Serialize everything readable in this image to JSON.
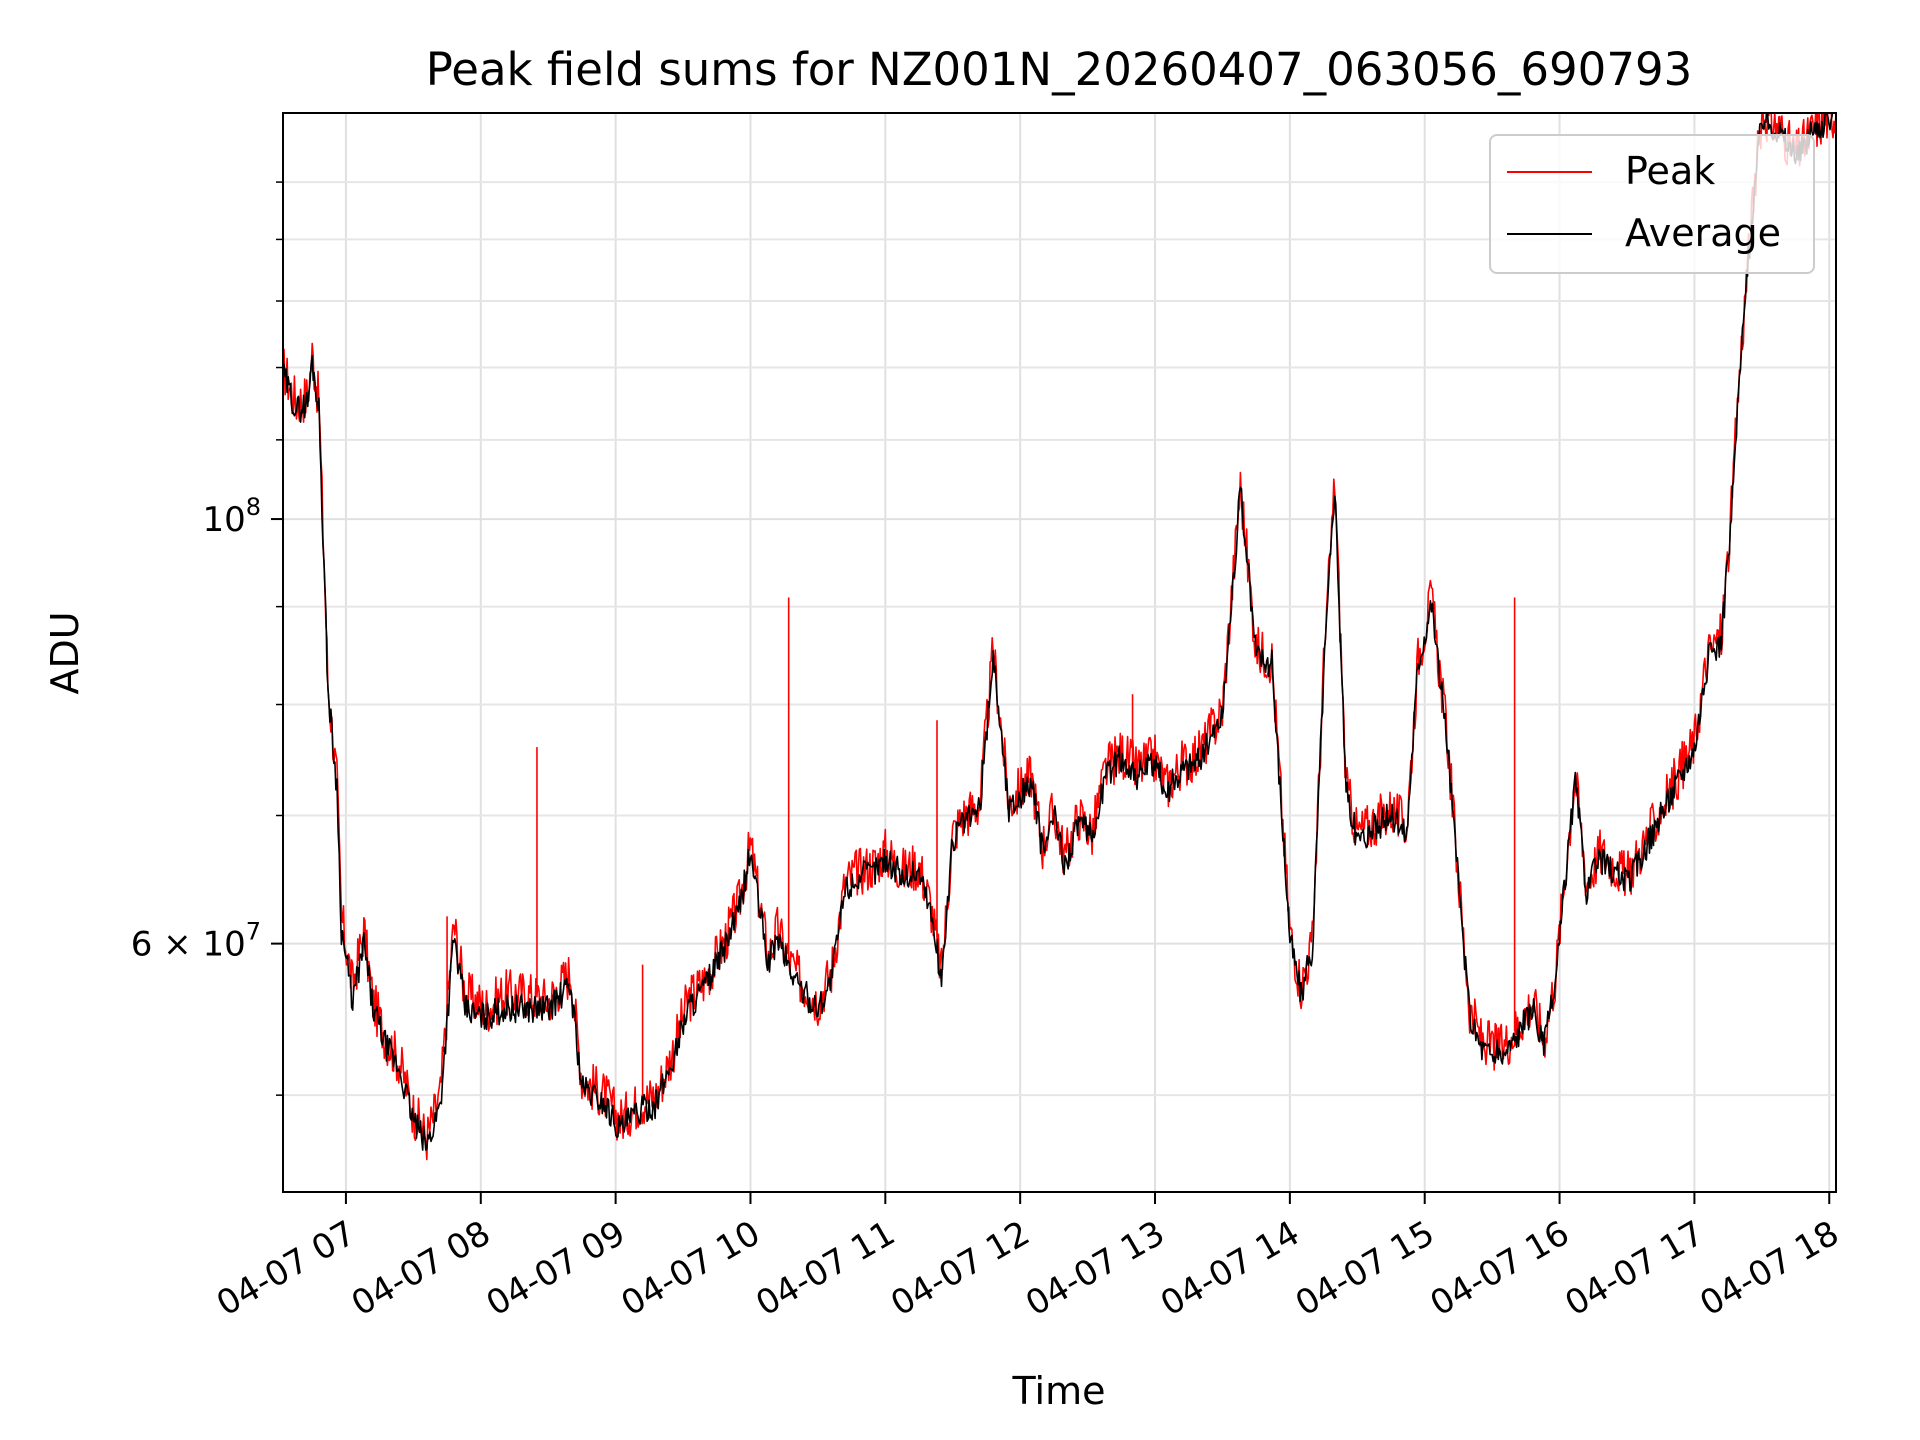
{
  "chart_data": {
    "type": "line",
    "title": "Peak field sums for NZ001N_20260407_063056_690793",
    "xlabel": "Time",
    "ylabel": "ADU",
    "yscale": "log",
    "ylim": [
      44500000,
      163000000
    ],
    "xlim": [
      "2026-04-07 06:32",
      "2026-04-07 18:03"
    ],
    "grid": true,
    "legend_position": "top-right",
    "x_tick_labels": [
      "04-07 07",
      "04-07 08",
      "04-07 09",
      "04-07 10",
      "04-07 11",
      "04-07 12",
      "04-07 13",
      "04-07 14",
      "04-07 15",
      "04-07 16",
      "04-07 17",
      "04-07 18"
    ],
    "y_tick_labels": [
      {
        "value": 100000000,
        "base": "10",
        "exp": "8"
      },
      {
        "value": 60000000,
        "coef": "6",
        "base": "10",
        "exp": "7"
      }
    ],
    "series": [
      {
        "name": "Peak",
        "color": "#ff0000",
        "x": [
          "06:32",
          "06:38",
          "06:43",
          "06:45",
          "06:48",
          "06:52",
          "06:56",
          "06:58",
          "07:03",
          "07:08",
          "07:12",
          "07:18",
          "07:24",
          "07:30",
          "07:36",
          "07:42",
          "07:48",
          "07:53",
          "07:58",
          "08:03",
          "08:10",
          "08:20",
          "08:30",
          "08:40",
          "08:45",
          "08:50",
          "08:55",
          "09:02",
          "09:10",
          "09:18",
          "09:25",
          "09:32",
          "09:40",
          "09:48",
          "09:55",
          "10:00",
          "10:08",
          "10:12",
          "10:18",
          "10:24",
          "10:30",
          "10:36",
          "10:42",
          "10:48",
          "10:55",
          "11:00",
          "11:08",
          "11:15",
          "11:20",
          "11:25",
          "11:30",
          "11:35",
          "11:42",
          "11:48",
          "11:55",
          "12:05",
          "12:10",
          "12:15",
          "12:20",
          "12:26",
          "12:32",
          "12:38",
          "12:45",
          "12:52",
          "13:00",
          "13:05",
          "13:12",
          "13:20",
          "13:30",
          "13:38",
          "13:45",
          "13:52",
          "14:00",
          "14:05",
          "14:10",
          "14:15",
          "14:20",
          "14:25",
          "14:30",
          "14:38",
          "14:45",
          "14:52",
          "14:57",
          "15:03",
          "15:10",
          "15:15",
          "15:20",
          "15:25",
          "15:30",
          "15:35",
          "15:40",
          "15:48",
          "15:53",
          "15:58",
          "16:02",
          "16:07",
          "16:12",
          "16:18",
          "16:30",
          "16:40",
          "16:50",
          "17:00",
          "17:06",
          "17:12",
          "17:16",
          "17:20",
          "17:25",
          "17:30",
          "17:38",
          "17:45",
          "17:50",
          "17:55",
          "18:03"
        ],
        "values": [
          120000000,
          115000000,
          116000000,
          122000000,
          115000000,
          82000000,
          73000000,
          62000000,
          57000000,
          61000000,
          56000000,
          53500000,
          52000000,
          49000000,
          47500000,
          50000000,
          61500000,
          56500000,
          56000000,
          55500000,
          56500000,
          56500000,
          56000000,
          58000000,
          51000000,
          50500000,
          50000000,
          48500000,
          49500000,
          50000000,
          52500000,
          56000000,
          57500000,
          60000000,
          63000000,
          67500000,
          59000000,
          61000000,
          58500000,
          57000000,
          56000000,
          58000000,
          64500000,
          65500000,
          66000000,
          67000000,
          65500000,
          66000000,
          63000000,
          58000000,
          68500000,
          70000000,
          71000000,
          85500000,
          71000000,
          73500000,
          67500000,
          70500000,
          66500000,
          70000000,
          68500000,
          74000000,
          75500000,
          74000000,
          75000000,
          72500000,
          74500000,
          75500000,
          79500000,
          104000000,
          85500000,
          84500000,
          61000000,
          57000000,
          60000000,
          83500000,
          105000000,
          72500000,
          68500000,
          69500000,
          70500000,
          69000000,
          84500000,
          91000000,
          77000000,
          65000000,
          55500000,
          53500000,
          53000000,
          53000000,
          54000000,
          56000000,
          53500000,
          57500000,
          64500000,
          73500000,
          64500000,
          67000000,
          65000000,
          68500000,
          72500000,
          76500000,
          85000000,
          87000000,
          99000000,
          119000000,
          142000000,
          163000000,
          160000000,
          155000000,
          158000000,
          161000000,
          163000000
        ],
        "spikes": [
          [
            "07:45",
            62000000
          ],
          [
            "08:25",
            76000000
          ],
          [
            "09:12",
            58500000
          ],
          [
            "10:17",
            91000000
          ],
          [
            "11:23",
            78500000
          ],
          [
            "12:50",
            81000000
          ],
          [
            "15:40",
            91000000
          ]
        ]
      },
      {
        "name": "Average",
        "color": "#000000",
        "x": [
          "06:32",
          "06:38",
          "06:43",
          "06:45",
          "06:48",
          "06:52",
          "06:56",
          "06:58",
          "07:03",
          "07:08",
          "07:12",
          "07:18",
          "07:24",
          "07:30",
          "07:36",
          "07:42",
          "07:48",
          "07:53",
          "07:58",
          "08:03",
          "08:10",
          "08:20",
          "08:30",
          "08:40",
          "08:45",
          "08:50",
          "08:55",
          "09:02",
          "09:10",
          "09:18",
          "09:25",
          "09:32",
          "09:40",
          "09:48",
          "09:55",
          "10:00",
          "10:08",
          "10:12",
          "10:18",
          "10:24",
          "10:30",
          "10:36",
          "10:42",
          "10:48",
          "10:55",
          "11:00",
          "11:08",
          "11:15",
          "11:20",
          "11:25",
          "11:30",
          "11:35",
          "11:42",
          "11:48",
          "11:55",
          "12:05",
          "12:10",
          "12:15",
          "12:20",
          "12:26",
          "12:32",
          "12:38",
          "12:45",
          "12:52",
          "13:00",
          "13:05",
          "13:12",
          "13:20",
          "13:30",
          "13:38",
          "13:45",
          "13:52",
          "14:00",
          "14:05",
          "14:10",
          "14:15",
          "14:20",
          "14:25",
          "14:30",
          "14:38",
          "14:45",
          "14:52",
          "14:57",
          "15:03",
          "15:10",
          "15:15",
          "15:20",
          "15:25",
          "15:30",
          "15:35",
          "15:40",
          "15:48",
          "15:53",
          "15:58",
          "16:02",
          "16:07",
          "16:12",
          "16:18",
          "16:30",
          "16:40",
          "16:50",
          "17:00",
          "17:06",
          "17:12",
          "17:16",
          "17:20",
          "17:25",
          "17:30",
          "17:38",
          "17:45",
          "17:50",
          "17:55",
          "18:03"
        ],
        "values": [
          119000000,
          114000000,
          115000000,
          121000000,
          114000000,
          81500000,
          72500000,
          61000000,
          56000000,
          60000000,
          55500000,
          53000000,
          51500000,
          48500000,
          47000000,
          49500000,
          60500000,
          55500000,
          55000000,
          55000000,
          55500000,
          55500000,
          55500000,
          57000000,
          50500000,
          50000000,
          49500000,
          48000000,
          49000000,
          49500000,
          52000000,
          55500000,
          57000000,
          59500000,
          62500000,
          67000000,
          58500000,
          60500000,
          58000000,
          56500000,
          55500000,
          57500000,
          64000000,
          65000000,
          65500000,
          66500000,
          65000000,
          65500000,
          62500000,
          57500000,
          68000000,
          69500000,
          70500000,
          85000000,
          70500000,
          73000000,
          67000000,
          70000000,
          66000000,
          69500000,
          68000000,
          73500000,
          75000000,
          73500000,
          74500000,
          72000000,
          74000000,
          75000000,
          79000000,
          103500000,
          85000000,
          84000000,
          60500000,
          56500000,
          59500000,
          83000000,
          104500000,
          72000000,
          68000000,
          69000000,
          70000000,
          68500000,
          84000000,
          90500000,
          76500000,
          64500000,
          55000000,
          53000000,
          52500000,
          52500000,
          53500000,
          55500000,
          53000000,
          57000000,
          64000000,
          73000000,
          64000000,
          66500000,
          64500000,
          68000000,
          72000000,
          76000000,
          84500000,
          86500000,
          98500000,
          118500000,
          141500000,
          162500000,
          159500000,
          154500000,
          157500000,
          160500000,
          162500000
        ]
      }
    ]
  }
}
